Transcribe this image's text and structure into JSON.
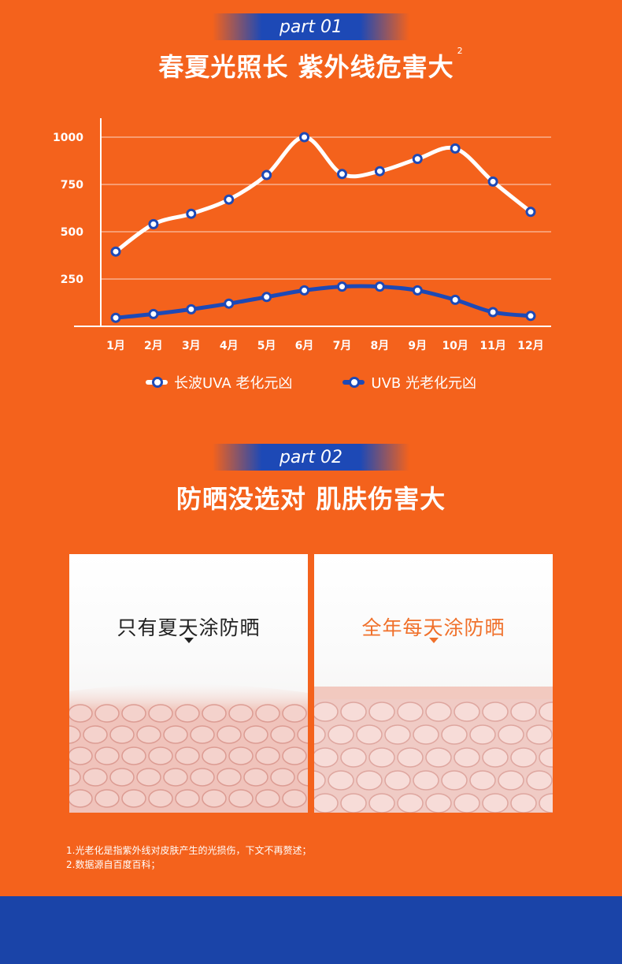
{
  "part1": {
    "label": "part 01",
    "title": "春夏光照长 紫外线危害大",
    "title_sup": "2"
  },
  "part2": {
    "label": "part 02",
    "title": "防晒没选对 肌肤伤害大"
  },
  "cards": [
    {
      "label": "只有夏天涂防晒",
      "label_color": "#222222"
    },
    {
      "label": "全年每天涂防晒",
      "label_color": "#f0702a"
    }
  ],
  "footnotes": [
    "1.光老化是指紫外线对皮肤产生的光损伤，下文不再赘述；",
    "2.数据源自百度百科；"
  ],
  "colors": {
    "background": "#f4621c",
    "accent_blue": "#1d49b6",
    "white": "#ffffff"
  },
  "chart_data": {
    "type": "line",
    "categories": [
      "1月",
      "2月",
      "3月",
      "4月",
      "5月",
      "6月",
      "7月",
      "8月",
      "9月",
      "10月",
      "11月",
      "12月"
    ],
    "yticks": [
      250,
      500,
      750,
      1000
    ],
    "ylim": [
      0,
      1000
    ],
    "grid": true,
    "legend_position": "bottom",
    "series": [
      {
        "name": "长波UVA 老化元凶",
        "color": "#ffffff",
        "values": [
          395,
          540,
          595,
          670,
          800,
          1000,
          805,
          820,
          885,
          940,
          765,
          605
        ]
      },
      {
        "name": "UVB 光老化元凶",
        "color": "#1d49b6",
        "values": [
          45,
          65,
          90,
          120,
          155,
          190,
          210,
          210,
          190,
          140,
          75,
          55
        ]
      }
    ]
  }
}
